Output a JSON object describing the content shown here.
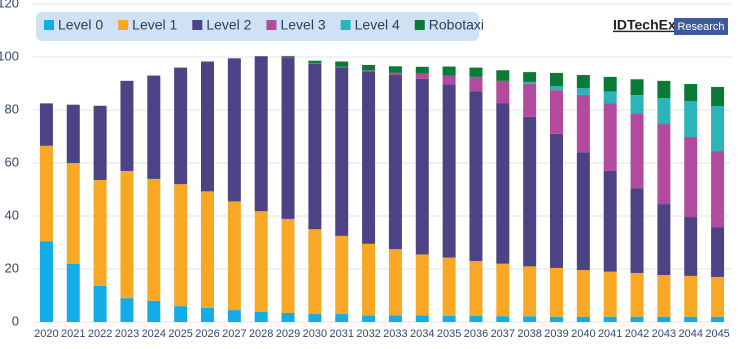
{
  "chart_data": {
    "type": "stacked_bar",
    "categories": [
      "2020",
      "2021",
      "2022",
      "2023",
      "2024",
      "2025",
      "2026",
      "2027",
      "2028",
      "2029",
      "2030",
      "2031",
      "2032",
      "2033",
      "2034",
      "2035",
      "2036",
      "2037",
      "2038",
      "2039",
      "2040",
      "2041",
      "2042",
      "2043",
      "2044",
      "2045"
    ],
    "series": [
      {
        "name": "Level 0",
        "color": "#12ace6",
        "values": [
          30.5,
          22,
          13.6,
          9,
          8,
          6,
          5.3,
          4.5,
          3.8,
          3.4,
          3,
          3,
          2.5,
          2.5,
          2.5,
          2.3,
          2.3,
          2.2,
          2.2,
          2,
          2,
          2,
          2,
          2,
          2,
          2
        ]
      },
      {
        "name": "Level 1",
        "color": "#f9a826",
        "values": [
          36,
          38,
          40,
          48,
          46,
          46,
          44,
          41,
          38,
          35.5,
          32,
          29.5,
          27,
          25,
          23,
          22,
          20.7,
          19.8,
          18.8,
          18.4,
          17.6,
          17,
          16.5,
          15.7,
          15.4,
          15
        ]
      },
      {
        "name": "Level 2",
        "color": "#4b4384",
        "values": [
          16,
          22,
          28,
          34,
          39,
          44,
          49,
          54,
          58.5,
          61,
          62.4,
          63.5,
          65,
          65.7,
          66.3,
          65.3,
          64,
          60.6,
          56.4,
          50.6,
          44.4,
          38,
          32,
          26.8,
          22.2,
          18.8
        ]
      },
      {
        "name": "Level 3",
        "color": "#b24b9e",
        "values": [
          0,
          0,
          0,
          0,
          0,
          0,
          0,
          0,
          0,
          0.2,
          0.2,
          0.3,
          0.5,
          0.8,
          2,
          3.4,
          5.5,
          8.4,
          12.4,
          16.5,
          21.7,
          25.6,
          28.3,
          30.2,
          30.2,
          28.7
        ]
      },
      {
        "name": "Level 4",
        "color": "#2bb5b9",
        "values": [
          0,
          0,
          0,
          0,
          0,
          0,
          0,
          0,
          0,
          0,
          0,
          0,
          0,
          0,
          0,
          0,
          0,
          0,
          0.8,
          1.5,
          2.6,
          4.4,
          6.8,
          9.8,
          13.6,
          17
        ]
      },
      {
        "name": "Robotaxi",
        "color": "#0a7a37",
        "values": [
          0,
          0,
          0,
          0,
          0,
          0,
          0,
          0,
          0,
          0.3,
          1,
          2,
          2,
          2.5,
          2.5,
          3.4,
          3.5,
          4,
          3.7,
          5,
          4.9,
          5.5,
          6,
          6.5,
          6.4,
          7.2
        ]
      }
    ],
    "ylim": [
      0,
      120
    ],
    "yticks": [
      0,
      20,
      40,
      60,
      80,
      100,
      120
    ],
    "grid": true,
    "logo_text": "IDTechEx",
    "logo_tag": "Research"
  }
}
